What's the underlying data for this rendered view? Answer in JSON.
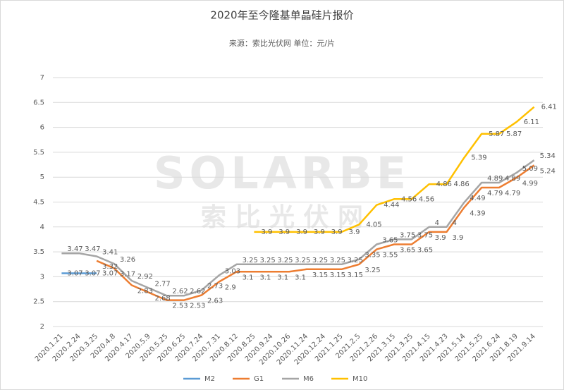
{
  "chart_data": {
    "type": "line",
    "title": "2020年至今隆基单晶硅片报价",
    "subtitle": "来源：索比光伏网  单位：元/片",
    "watermark": [
      "SOLARBE",
      "索 比 光 伏 网"
    ],
    "categories": [
      "2020.1.21",
      "2020.2.24",
      "2020.3.25",
      "2020.4.8",
      "2020.4.17",
      "2020.5.9",
      "2020.5.25",
      "2020.6.25",
      "2020.7.24",
      "2020.7.31",
      "2020.8.12",
      "2020.8.25",
      "2020.9.24",
      "2020.10.26",
      "2020.11.24",
      "2020.12.24",
      "2021.1.25",
      "2021.2.5",
      "2021.2.26",
      "2021.3.15",
      "2021.3.25",
      "2021.4.15",
      "2021.4.23",
      "2021.5.14",
      "2021.5.25",
      "2021.6.24",
      "2021.8.19",
      "2021.9.14"
    ],
    "series": [
      {
        "name": "M2",
        "color": "#5b9bd5",
        "values": [
          3.07,
          3.07,
          3.07,
          null,
          null,
          null,
          null,
          null,
          null,
          null,
          null,
          null,
          null,
          null,
          null,
          null,
          null,
          null,
          null,
          null,
          null,
          null,
          null,
          null,
          null,
          null,
          null,
          null
        ]
      },
      {
        "name": "G1",
        "color": "#ed7d31",
        "values": [
          null,
          null,
          3.32,
          3.17,
          2.83,
          2.68,
          2.53,
          2.53,
          2.63,
          2.9,
          3.1,
          3.1,
          3.1,
          3.1,
          3.15,
          3.15,
          3.15,
          3.25,
          3.55,
          3.65,
          3.65,
          3.9,
          3.9,
          4.39,
          4.79,
          4.79,
          4.99,
          5.24
        ]
      },
      {
        "name": "M6",
        "color": "#a5a5a5",
        "values": [
          3.47,
          3.47,
          3.41,
          3.26,
          2.92,
          2.77,
          2.62,
          2.62,
          2.73,
          3.03,
          3.25,
          3.25,
          3.25,
          3.25,
          3.25,
          3.25,
          3.25,
          3.35,
          3.65,
          3.75,
          3.75,
          4,
          4,
          4.49,
          4.89,
          4.89,
          5.09,
          5.34
        ]
      },
      {
        "name": "M10",
        "color": "#ffc000",
        "values": [
          null,
          null,
          null,
          null,
          null,
          null,
          null,
          null,
          null,
          null,
          null,
          3.9,
          3.9,
          3.9,
          3.9,
          3.9,
          3.9,
          4.05,
          4.44,
          4.56,
          4.56,
          4.86,
          4.86,
          5.39,
          5.87,
          5.87,
          6.11,
          6.41
        ]
      }
    ],
    "ylim": [
      2,
      7
    ],
    "yticks": [
      2,
      2.5,
      3,
      3.5,
      4,
      4.5,
      5,
      5.5,
      6,
      6.5,
      7
    ],
    "grid": true
  }
}
